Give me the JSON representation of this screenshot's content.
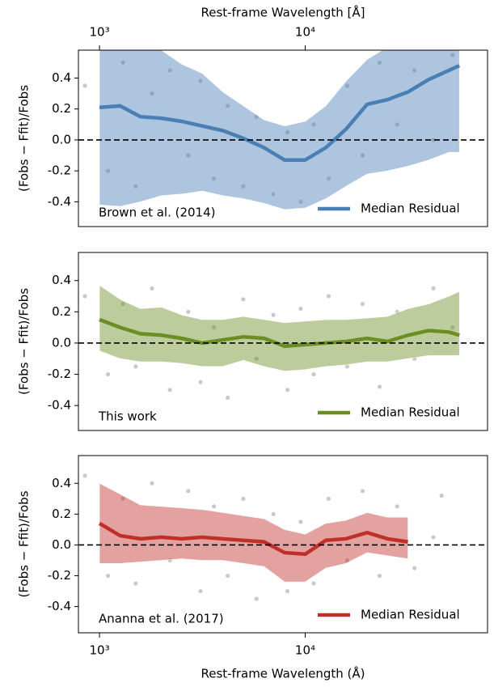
{
  "chart_data": [
    {
      "type": "line",
      "annotation": "Brown et al. (2014)",
      "xlabel": "Rest-frame Wavelength [Å]",
      "xaxis_position": "top",
      "ylabel": "(Fobs − Ffit)/Fobs",
      "log_x": true,
      "xlim": [
        790,
        77000
      ],
      "ylim": [
        -0.56,
        0.58
      ],
      "xticks": [
        {
          "value": 1000,
          "label": "10³"
        },
        {
          "value": 10000,
          "label": "10⁴"
        }
      ],
      "yticks": [
        -0.4,
        -0.2,
        {
          "value": 0,
          "label": "0.0"
        },
        0.2,
        0.4
      ],
      "hline": 0,
      "legend": "lower right",
      "scatter": {
        "color": "#888888",
        "x": [
          850,
          1100,
          1300,
          1500,
          1800,
          2200,
          2700,
          3100,
          3600,
          4200,
          5000,
          5800,
          7000,
          8200,
          9500,
          11000,
          13000,
          16000,
          19000,
          23000,
          28000,
          34000,
          42000,
          52000
        ],
        "y": [
          0.35,
          -0.2,
          0.5,
          -0.3,
          0.3,
          0.45,
          -0.1,
          0.38,
          -0.25,
          0.22,
          -0.3,
          0.15,
          -0.35,
          0.05,
          -0.4,
          0.1,
          -0.25,
          0.35,
          -0.1,
          0.5,
          0.1,
          0.45,
          0.0,
          0.55
        ]
      },
      "x": [
        1000,
        1260,
        1580,
        2000,
        2510,
        3160,
        3980,
        5010,
        6310,
        7940,
        10000,
        12600,
        15800,
        20000,
        25100,
        31600,
        39800,
        50100,
        56200
      ],
      "series": [
        {
          "name": "Median Residual",
          "color": "#4a7fb5",
          "values": [
            0.21,
            0.22,
            0.15,
            0.14,
            0.12,
            0.09,
            0.06,
            0.01,
            -0.05,
            -0.13,
            -0.13,
            -0.05,
            0.07,
            0.23,
            0.26,
            0.31,
            0.39,
            0.45,
            0.48
          ],
          "upper": [
            0.62,
            0.62,
            0.62,
            0.58,
            0.49,
            0.43,
            0.31,
            0.22,
            0.13,
            0.09,
            0.12,
            0.22,
            0.38,
            0.52,
            0.6,
            0.62,
            0.62,
            0.62,
            0.62
          ],
          "lower": [
            -0.42,
            -0.43,
            -0.4,
            -0.36,
            -0.35,
            -0.33,
            -0.36,
            -0.38,
            -0.41,
            -0.45,
            -0.44,
            -0.38,
            -0.3,
            -0.22,
            -0.2,
            -0.17,
            -0.13,
            -0.08,
            -0.08
          ]
        }
      ]
    },
    {
      "type": "line",
      "annotation": "This work",
      "ylabel": "(Fobs − Ffit)/Fobs",
      "log_x": true,
      "xlim": [
        790,
        77000
      ],
      "ylim": [
        -0.56,
        0.58
      ],
      "yticks": [
        -0.4,
        -0.2,
        {
          "value": 0,
          "label": "0.0"
        },
        0.2,
        0.4
      ],
      "hline": 0,
      "legend": "lower right",
      "scatter": {
        "color": "#888888",
        "x": [
          850,
          1100,
          1300,
          1500,
          1800,
          2200,
          2700,
          3100,
          3600,
          4200,
          5000,
          5800,
          7000,
          8200,
          9500,
          11000,
          13000,
          16000,
          19000,
          23000,
          28000,
          34000,
          42000,
          52000
        ],
        "y": [
          0.3,
          -0.2,
          0.25,
          -0.15,
          0.35,
          -0.3,
          0.2,
          -0.25,
          0.1,
          -0.35,
          0.28,
          -0.1,
          0.18,
          -0.3,
          0.22,
          -0.2,
          0.3,
          -0.15,
          0.25,
          -0.28,
          0.2,
          -0.1,
          0.35,
          0.1
        ]
      },
      "x": [
        1000,
        1260,
        1580,
        2000,
        2510,
        3160,
        3980,
        5010,
        6310,
        7940,
        10000,
        12600,
        15800,
        20000,
        25100,
        31600,
        39800,
        50100,
        56200
      ],
      "series": [
        {
          "name": "Median Residual",
          "color": "#6b8e23",
          "values": [
            0.15,
            0.1,
            0.06,
            0.05,
            0.03,
            0.0,
            0.02,
            0.04,
            0.03,
            -0.02,
            -0.01,
            0.0,
            0.01,
            0.03,
            0.01,
            0.05,
            0.08,
            0.07,
            0.05
          ],
          "upper": [
            0.37,
            0.28,
            0.22,
            0.23,
            0.18,
            0.15,
            0.15,
            0.17,
            0.15,
            0.13,
            0.14,
            0.15,
            0.15,
            0.16,
            0.17,
            0.22,
            0.25,
            0.3,
            0.33
          ],
          "lower": [
            -0.05,
            -0.1,
            -0.12,
            -0.12,
            -0.13,
            -0.15,
            -0.15,
            -0.11,
            -0.15,
            -0.18,
            -0.17,
            -0.15,
            -0.14,
            -0.12,
            -0.12,
            -0.1,
            -0.08,
            -0.08,
            -0.08
          ]
        }
      ]
    },
    {
      "type": "line",
      "annotation": "Ananna et al. (2017)",
      "xlabel": "Rest-frame Wavelength (Å)",
      "xaxis_position": "bottom",
      "ylabel": "(Fobs − Ffit)/Fobs",
      "log_x": true,
      "xlim": [
        790,
        77000
      ],
      "ylim": [
        -0.57,
        0.58
      ],
      "xticks": [
        {
          "value": 1000,
          "label": "10³"
        },
        {
          "value": 10000,
          "label": "10⁴"
        }
      ],
      "yticks": [
        -0.4,
        -0.2,
        {
          "value": 0,
          "label": "0.0"
        },
        0.2,
        0.4
      ],
      "hline": 0,
      "legend": "lower right",
      "scatter": {
        "color": "#888888",
        "x": [
          850,
          1100,
          1300,
          1500,
          1800,
          2200,
          2700,
          3100,
          3600,
          4200,
          5000,
          5800,
          7000,
          8200,
          9500,
          11000,
          13000,
          16000,
          19000,
          23000,
          28000,
          34000,
          42000,
          46000
        ],
        "y": [
          0.45,
          -0.2,
          0.3,
          -0.25,
          0.4,
          -0.1,
          0.35,
          -0.3,
          0.25,
          -0.2,
          0.3,
          -0.35,
          0.2,
          -0.3,
          0.15,
          -0.25,
          0.3,
          -0.1,
          0.35,
          -0.2,
          0.25,
          -0.15,
          0.05,
          0.32
        ]
      },
      "x": [
        1000,
        1260,
        1580,
        2000,
        2510,
        3160,
        3980,
        5010,
        6310,
        7940,
        10000,
        12600,
        15800,
        20000,
        25100,
        31600
      ],
      "series": [
        {
          "name": "Median Residual",
          "color": "#c0302b",
          "values": [
            0.14,
            0.06,
            0.04,
            0.05,
            0.04,
            0.05,
            0.04,
            0.03,
            0.02,
            -0.05,
            -0.06,
            0.03,
            0.04,
            0.08,
            0.04,
            0.02
          ],
          "upper": [
            0.4,
            0.33,
            0.26,
            0.25,
            0.24,
            0.23,
            0.21,
            0.19,
            0.17,
            0.1,
            0.07,
            0.14,
            0.16,
            0.21,
            0.18,
            0.18
          ],
          "lower": [
            -0.12,
            -0.12,
            -0.11,
            -0.1,
            -0.09,
            -0.1,
            -0.1,
            -0.12,
            -0.14,
            -0.24,
            -0.24,
            -0.15,
            -0.12,
            -0.05,
            -0.07,
            -0.09
          ]
        }
      ]
    }
  ]
}
